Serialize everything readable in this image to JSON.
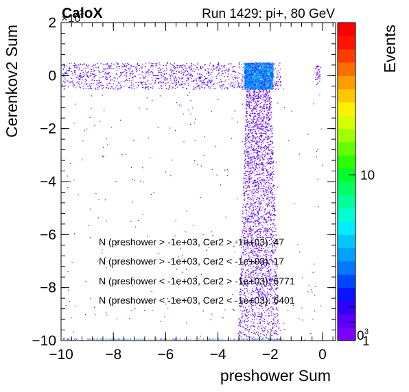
{
  "header": {
    "logo_text": "CaloX",
    "exponent_label": "×10",
    "run_label": "Run 1429: pi+, 80 GeV"
  },
  "chart_data": {
    "type": "heatmap",
    "title": "Run 1429: pi+, 80 GeV",
    "xlabel": "preshower Sum",
    "ylabel": "Cerenkov2 Sum",
    "y_multiplier": "×10³",
    "xlim": [
      -10,
      0.5
    ],
    "ylim": [
      -10,
      2
    ],
    "x_ticks": [
      "−10",
      "−8",
      "−6",
      "−4",
      "−2",
      "0"
    ],
    "x_tick_values": [
      -10,
      -8,
      -6,
      -4,
      -2,
      0
    ],
    "y_ticks": [
      "−10",
      "−8",
      "−6",
      "−4",
      "−2",
      "0",
      "2"
    ],
    "y_tick_values": [
      -10,
      -8,
      -6,
      -4,
      -2,
      0,
      2
    ],
    "colorbar": {
      "label": "Events",
      "scale": "log",
      "tick_labels": [
        "1",
        "10"
      ],
      "exponent_label": "3",
      "colors": [
        "#7a00ff",
        "#5a00ff",
        "#3200ff",
        "#0a14ff",
        "#0046ff",
        "#0078ff",
        "#00a0ff",
        "#00c8ff",
        "#00eeff",
        "#00ffd0",
        "#00ff9a",
        "#00ff62",
        "#00ff2c",
        "#2aff00",
        "#64ff00",
        "#a0ff00",
        "#d8ff00",
        "#fff000",
        "#ffc800",
        "#ff9c00",
        "#ff6e00",
        "#ff3c00",
        "#ff1400",
        "#ff0000"
      ]
    },
    "annotations": [
      "N (preshower > -1e+03, Cer2 > -1e+03): 47",
      "N (preshower > -1e+03, Cer2 < -1e+03): 17",
      "N (preshower < -1e+03, Cer2 > -1e+03): 6771",
      "N (preshower < -1e+03, Cer2 < -1e+03): 6401"
    ],
    "regions": [
      {
        "name": "horizontal band",
        "x_range": [
          -10,
          -1.8
        ],
        "y_range": [
          -0.5,
          0.5
        ],
        "peak_x_range": [
          -3,
          -1.9
        ]
      },
      {
        "name": "vertical band",
        "x_range": [
          -3,
          -1.9
        ],
        "y_range": [
          -10,
          -0.5
        ]
      }
    ],
    "grid": false
  }
}
